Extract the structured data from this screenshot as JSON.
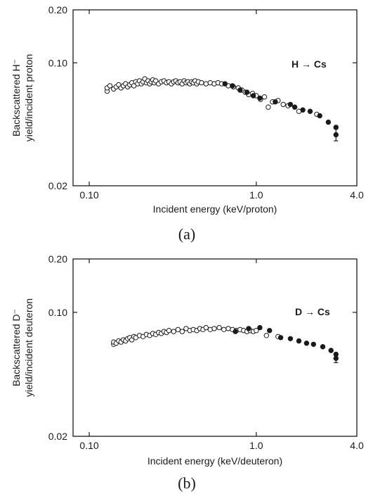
{
  "chart_data": [
    {
      "type": "scatter",
      "panel_label": "(a)",
      "annotation": "H → Cs",
      "xlabel": "Incident energy (keV/proton)",
      "ylabel_line1": "Backscattered H⁻",
      "ylabel_line2": "yield/incident proton",
      "x_scale": "log",
      "y_scale": "log",
      "xlim": [
        0.08,
        4.0
      ],
      "ylim": [
        0.02,
        0.2
      ],
      "x_ticks": [
        {
          "value": 0.1,
          "label": "0.10"
        },
        {
          "value": 1.0,
          "label": "1.0"
        },
        {
          "value": 4.0,
          "label": "4.0"
        }
      ],
      "y_ticks": [
        {
          "value": 0.2,
          "label": "0.20"
        },
        {
          "value": 0.1,
          "label": "0.10"
        },
        {
          "value": 0.02,
          "label": "0.02"
        }
      ],
      "grid": false,
      "series": [
        {
          "marker": "open-circle",
          "points": [
            [
              0.128,
              0.069
            ],
            [
              0.128,
              0.072
            ],
            [
              0.133,
              0.074
            ],
            [
              0.14,
              0.071
            ],
            [
              0.145,
              0.073
            ],
            [
              0.15,
              0.075
            ],
            [
              0.155,
              0.072
            ],
            [
              0.16,
              0.074
            ],
            [
              0.165,
              0.076
            ],
            [
              0.17,
              0.073
            ],
            [
              0.175,
              0.075
            ],
            [
              0.18,
              0.077
            ],
            [
              0.185,
              0.074
            ],
            [
              0.19,
              0.078
            ],
            [
              0.195,
              0.076
            ],
            [
              0.2,
              0.079
            ],
            [
              0.205,
              0.076
            ],
            [
              0.21,
              0.078
            ],
            [
              0.215,
              0.081
            ],
            [
              0.22,
              0.077
            ],
            [
              0.225,
              0.079
            ],
            [
              0.23,
              0.076
            ],
            [
              0.235,
              0.078
            ],
            [
              0.24,
              0.08
            ],
            [
              0.245,
              0.077
            ],
            [
              0.25,
              0.079
            ],
            [
              0.26,
              0.076
            ],
            [
              0.27,
              0.078
            ],
            [
              0.28,
              0.079
            ],
            [
              0.29,
              0.077
            ],
            [
              0.3,
              0.078
            ],
            [
              0.31,
              0.076
            ],
            [
              0.32,
              0.078
            ],
            [
              0.33,
              0.079
            ],
            [
              0.34,
              0.077
            ],
            [
              0.35,
              0.078
            ],
            [
              0.36,
              0.076
            ],
            [
              0.37,
              0.079
            ],
            [
              0.38,
              0.077
            ],
            [
              0.39,
              0.078
            ],
            [
              0.4,
              0.076
            ],
            [
              0.41,
              0.078
            ],
            [
              0.42,
              0.077
            ],
            [
              0.43,
              0.079
            ],
            [
              0.44,
              0.076
            ],
            [
              0.45,
              0.078
            ],
            [
              0.47,
              0.077
            ],
            [
              0.5,
              0.076
            ],
            [
              0.53,
              0.077
            ],
            [
              0.56,
              0.076
            ],
            [
              0.59,
              0.077
            ],
            [
              0.62,
              0.076
            ],
            [
              0.68,
              0.074
            ],
            [
              0.73,
              0.073
            ],
            [
              0.78,
              0.072
            ],
            [
              0.82,
              0.07
            ],
            [
              0.86,
              0.068
            ],
            [
              0.9,
              0.066
            ],
            [
              0.95,
              0.067
            ],
            [
              1.0,
              0.065
            ],
            [
              1.06,
              0.062
            ],
            [
              1.12,
              0.064
            ],
            [
              1.18,
              0.056
            ],
            [
              1.25,
              0.06
            ],
            [
              1.35,
              0.061
            ],
            [
              1.45,
              0.058
            ],
            [
              1.55,
              0.057
            ],
            [
              1.8,
              0.053
            ],
            [
              2.3,
              0.051
            ]
          ]
        },
        {
          "marker": "filled-circle",
          "points": [
            [
              0.65,
              0.076
            ],
            [
              0.72,
              0.074
            ],
            [
              0.8,
              0.07
            ],
            [
              0.88,
              0.068
            ],
            [
              0.96,
              0.065
            ],
            [
              1.05,
              0.063
            ],
            [
              1.3,
              0.06
            ],
            [
              1.6,
              0.058
            ],
            [
              1.7,
              0.056
            ],
            [
              1.9,
              0.054
            ],
            [
              2.1,
              0.053
            ],
            [
              2.4,
              0.05
            ],
            [
              2.7,
              0.046
            ],
            [
              3.0,
              0.043
            ]
          ]
        }
      ],
      "error_bars": [
        {
          "x": 3.0,
          "y": 0.039,
          "ylow": 0.036,
          "yhigh": 0.042
        }
      ]
    },
    {
      "type": "scatter",
      "panel_label": "(b)",
      "annotation": "D → Cs",
      "xlabel": "Incident energy (keV/deuteron)",
      "ylabel_line1": "Backscattered D⁻",
      "ylabel_line2": "yield/incident deuteron",
      "x_scale": "log",
      "y_scale": "log",
      "xlim": [
        0.08,
        4.0
      ],
      "ylim": [
        0.02,
        0.2
      ],
      "x_ticks": [
        {
          "value": 0.1,
          "label": "0.10"
        },
        {
          "value": 1.0,
          "label": "1.0"
        },
        {
          "value": 4.0,
          "label": "4.0"
        }
      ],
      "y_ticks": [
        {
          "value": 0.2,
          "label": "0.20"
        },
        {
          "value": 0.1,
          "label": "0.10"
        },
        {
          "value": 0.02,
          "label": "0.02"
        }
      ],
      "grid": false,
      "series": [
        {
          "marker": "open-circle",
          "points": [
            [
              0.14,
              0.066
            ],
            [
              0.14,
              0.068
            ],
            [
              0.145,
              0.067
            ],
            [
              0.15,
              0.069
            ],
            [
              0.155,
              0.068
            ],
            [
              0.16,
              0.07
            ],
            [
              0.165,
              0.069
            ],
            [
              0.17,
              0.071
            ],
            [
              0.175,
              0.072
            ],
            [
              0.18,
              0.07
            ],
            [
              0.185,
              0.073
            ],
            [
              0.19,
              0.072
            ],
            [
              0.2,
              0.074
            ],
            [
              0.21,
              0.073
            ],
            [
              0.22,
              0.075
            ],
            [
              0.23,
              0.074
            ],
            [
              0.24,
              0.076
            ],
            [
              0.25,
              0.075
            ],
            [
              0.26,
              0.077
            ],
            [
              0.27,
              0.076
            ],
            [
              0.28,
              0.078
            ],
            [
              0.29,
              0.077
            ],
            [
              0.3,
              0.079
            ],
            [
              0.32,
              0.078
            ],
            [
              0.34,
              0.08
            ],
            [
              0.36,
              0.078
            ],
            [
              0.38,
              0.081
            ],
            [
              0.4,
              0.079
            ],
            [
              0.42,
              0.08
            ],
            [
              0.44,
              0.079
            ],
            [
              0.46,
              0.081
            ],
            [
              0.48,
              0.08
            ],
            [
              0.5,
              0.082
            ],
            [
              0.53,
              0.08
            ],
            [
              0.56,
              0.081
            ],
            [
              0.6,
              0.082
            ],
            [
              0.64,
              0.08
            ],
            [
              0.68,
              0.081
            ],
            [
              0.72,
              0.08
            ],
            [
              0.76,
              0.079
            ],
            [
              0.8,
              0.08
            ],
            [
              0.84,
              0.079
            ],
            [
              0.88,
              0.078
            ],
            [
              0.92,
              0.079
            ],
            [
              0.96,
              0.078
            ],
            [
              1.0,
              0.079
            ],
            [
              1.15,
              0.074
            ],
            [
              1.35,
              0.073
            ]
          ]
        },
        {
          "marker": "filled-circle",
          "points": [
            [
              0.75,
              0.078
            ],
            [
              0.9,
              0.081
            ],
            [
              1.05,
              0.082
            ],
            [
              1.2,
              0.079
            ],
            [
              1.4,
              0.072
            ],
            [
              1.6,
              0.071
            ],
            [
              1.8,
              0.069
            ],
            [
              2.0,
              0.067
            ],
            [
              2.2,
              0.066
            ],
            [
              2.5,
              0.064
            ],
            [
              2.8,
              0.061
            ],
            [
              3.0,
              0.058
            ]
          ]
        }
      ],
      "error_bars": [
        {
          "x": 3.0,
          "y": 0.055,
          "ylow": 0.052,
          "yhigh": 0.058
        }
      ]
    }
  ]
}
